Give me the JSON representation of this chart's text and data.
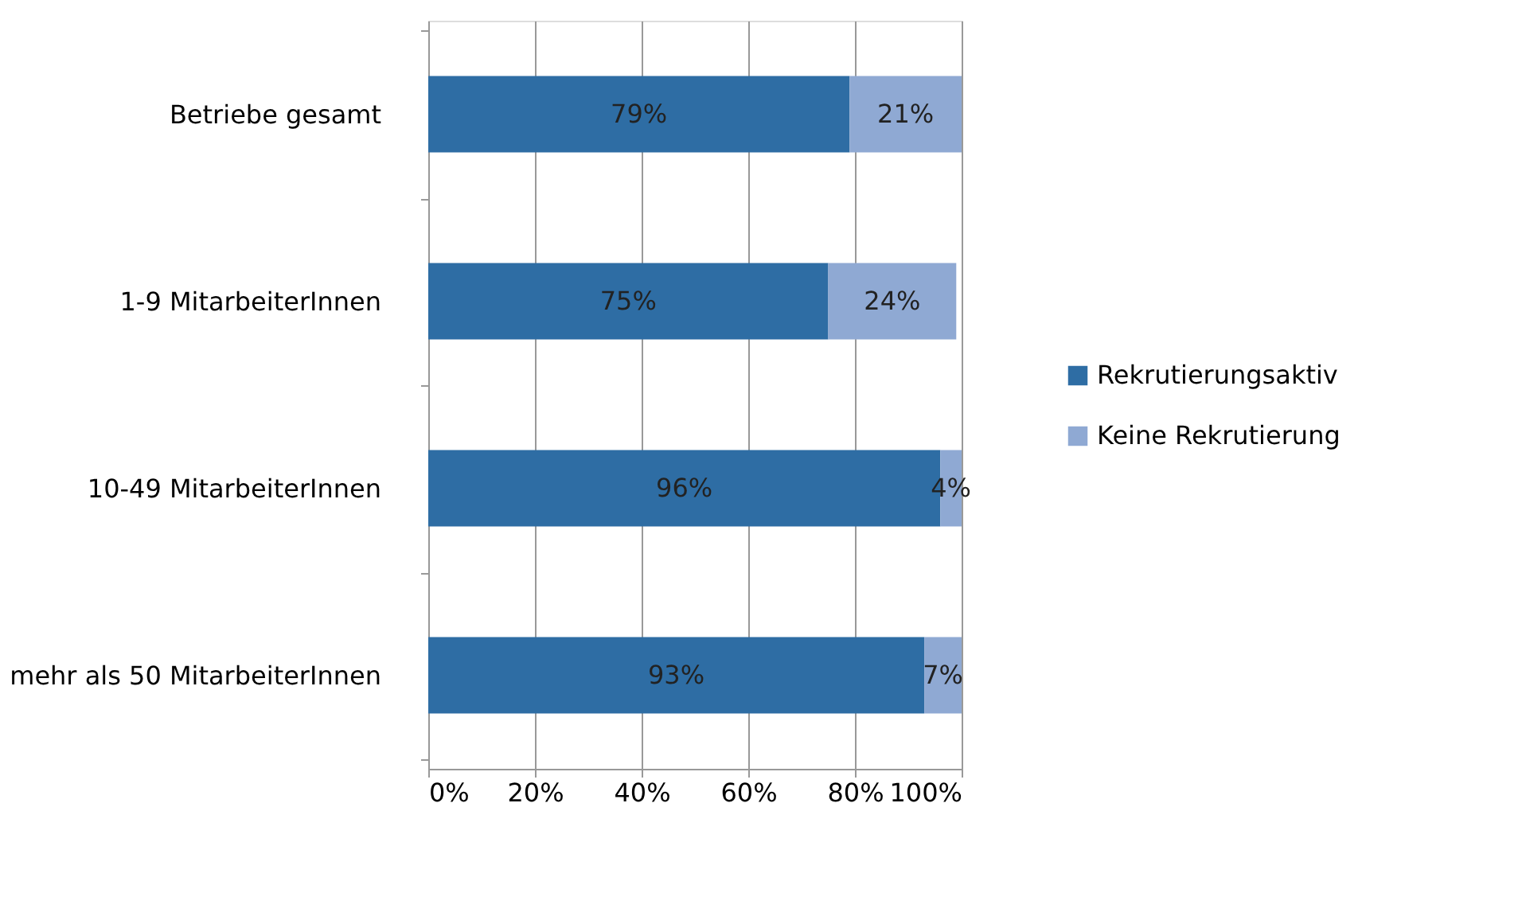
{
  "chart_data": {
    "type": "bar",
    "orientation": "horizontal",
    "stacked": true,
    "categories": [
      "Betriebe gesamt",
      "1-9 MitarbeiterInnen",
      "10-49 MitarbeiterInnen",
      "mehr als 50 MitarbeiterInnen"
    ],
    "series": [
      {
        "name": "Rekrutierungsaktiv",
        "color": "#2e6da4",
        "values": [
          79,
          75,
          96,
          93
        ]
      },
      {
        "name": "Keine Rekrutierung",
        "color": "#8fa9d3",
        "values": [
          21,
          24,
          4,
          7
        ]
      }
    ],
    "xlim": [
      0,
      100
    ],
    "xticks": [
      {
        "value": 0,
        "label": "0%"
      },
      {
        "value": 20,
        "label": "20%"
      },
      {
        "value": 40,
        "label": "40%"
      },
      {
        "value": 60,
        "label": "60%"
      },
      {
        "value": 80,
        "label": "80%"
      },
      {
        "value": 100,
        "label": "100%"
      }
    ],
    "value_labels": [
      [
        "79%",
        "75%",
        "96%",
        "93%"
      ],
      [
        "21%",
        "24%",
        "4%",
        "7%"
      ]
    ],
    "grid": "x",
    "legend": "right"
  }
}
